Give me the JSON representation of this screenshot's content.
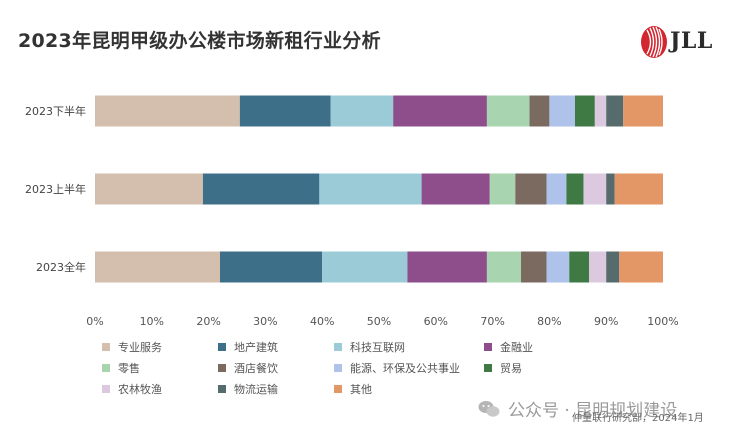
{
  "title": "2023年昆明甲级办公楼市场新租行业分析",
  "logo": {
    "text": "JLL",
    "icon": "jll-logo-icon",
    "color": "#d22630"
  },
  "watermark": {
    "text": "公众号 · 昆明规划建设",
    "icon": "wechat-icon"
  },
  "source": "仲量联行研究部，2024年1月",
  "chart_data": {
    "type": "bar",
    "orientation": "horizontal",
    "stacked": true,
    "normalized": true,
    "categories": [
      "2023下半年",
      "2023上半年",
      "2023全年"
    ],
    "xlim": [
      0,
      100
    ],
    "x_ticks": [
      "0%",
      "10%",
      "20%",
      "30%",
      "40%",
      "50%",
      "60%",
      "70%",
      "80%",
      "90%",
      "100%"
    ],
    "grid": false,
    "legend_position": "bottom",
    "series": [
      {
        "name": "专业服务",
        "color": "#d4bfae",
        "values": [
          25.5,
          19,
          22
        ]
      },
      {
        "name": "地产建筑",
        "color": "#3d7088",
        "values": [
          16,
          20.5,
          18
        ]
      },
      {
        "name": "科技互联网",
        "color": "#9ccbd8",
        "values": [
          11,
          18,
          15
        ]
      },
      {
        "name": "金融业",
        "color": "#8e4e8c",
        "values": [
          16.5,
          12,
          14
        ]
      },
      {
        "name": "零售",
        "color": "#a8d5b0",
        "values": [
          7.5,
          4.5,
          6
        ]
      },
      {
        "name": "酒店餐饮",
        "color": "#7a6a60",
        "values": [
          3.5,
          5.5,
          4.5
        ]
      },
      {
        "name": "能源、环保及公共事业",
        "color": "#aec2ea",
        "values": [
          4.5,
          3.5,
          4
        ]
      },
      {
        "name": "贸易",
        "color": "#3f7a45",
        "values": [
          3.5,
          3,
          3.5
        ]
      },
      {
        "name": "农林牧渔",
        "color": "#dcc8df",
        "values": [
          2,
          4,
          3
        ]
      },
      {
        "name": "物流运输",
        "color": "#566b6c",
        "values": [
          3,
          1.5,
          2.3
        ]
      },
      {
        "name": "其他",
        "color": "#e39666",
        "values": [
          7,
          8.5,
          7.7
        ]
      }
    ]
  }
}
